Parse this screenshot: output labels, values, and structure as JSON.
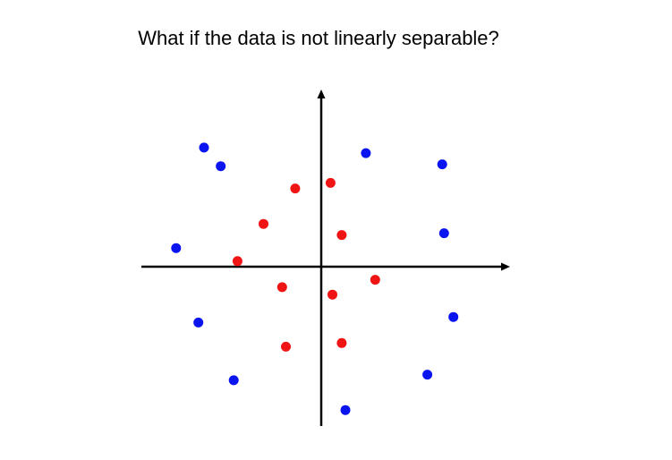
{
  "title": "What if the data is not linearly separable?",
  "colors": {
    "class_blue": "#0a14f0",
    "class_red": "#f01414",
    "axis": "#000000"
  },
  "chart_data": {
    "type": "scatter",
    "title": "What if the data is not linearly separable?",
    "xlabel": "",
    "ylabel": "",
    "xlim": [
      -10,
      10
    ],
    "ylim": [
      -8.8,
      9.8
    ],
    "grid": false,
    "series": [
      {
        "color": "#0a14f0",
        "points": [
          [
            -6.3,
            6.4
          ],
          [
            -5.4,
            5.4
          ],
          [
            2.4,
            6.1
          ],
          [
            6.5,
            5.5
          ],
          [
            -7.8,
            1.0
          ],
          [
            6.6,
            1.8
          ],
          [
            -6.6,
            -3.0
          ],
          [
            7.1,
            -2.7
          ],
          [
            -4.7,
            -6.1
          ],
          [
            5.7,
            -5.8
          ],
          [
            1.3,
            -7.7
          ]
        ]
      },
      {
        "color": "#f01414",
        "points": [
          [
            -1.4,
            4.2
          ],
          [
            0.5,
            4.5
          ],
          [
            -3.1,
            2.3
          ],
          [
            1.1,
            1.7
          ],
          [
            -4.5,
            0.3
          ],
          [
            2.9,
            -0.7
          ],
          [
            -2.1,
            -1.1
          ],
          [
            0.6,
            -1.5
          ],
          [
            -1.9,
            -4.3
          ],
          [
            1.1,
            -4.1
          ]
        ]
      }
    ]
  }
}
